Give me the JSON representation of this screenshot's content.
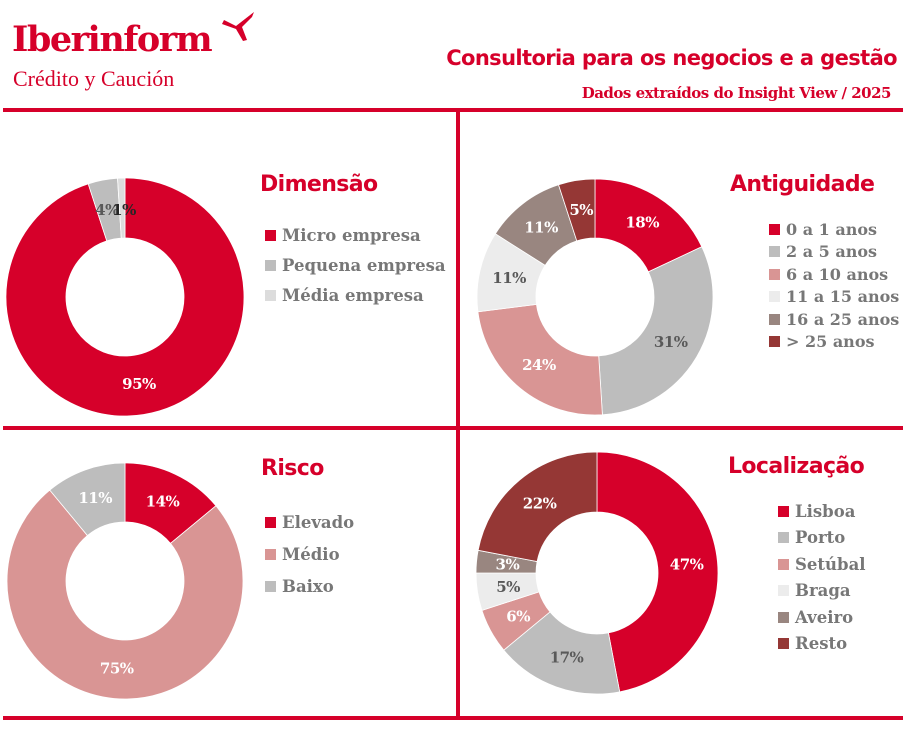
{
  "header": {
    "logo_text": "Iberinform",
    "logo_subtext": "Crédito y Caución",
    "title": "Consultoria para os negocios e a gestão",
    "subtitle": "Dados extraídos do Insight View / 2025"
  },
  "colors": {
    "brand_red": "#d6002a",
    "light_gray": "#bdbdbd",
    "pale_gray": "#d9d9d9",
    "pink": "#d99594",
    "off_white": "#ececec",
    "taupe": "#998680",
    "dark_red": "#953735",
    "legend_text": "#777777"
  },
  "chart_data": [
    {
      "type": "pie",
      "variant": "donut",
      "title": "Dimensão",
      "categories": [
        "Micro empresa",
        "Pequena empresa",
        "Média empresa"
      ],
      "values": [
        95,
        4,
        1
      ],
      "labels": [
        "95%",
        "4%",
        "1%"
      ],
      "colors": [
        "#d6002a",
        "#bdbdbd",
        "#dcdcdc"
      ],
      "label_colors": [
        "#ffffff",
        "#595959",
        "#262626"
      ],
      "legend": "right"
    },
    {
      "type": "pie",
      "variant": "donut",
      "title": "Antiguidade",
      "categories": [
        "0 a 1 anos",
        "2 a 5 anos",
        "6 a 10 anos",
        "11 a 15 anos",
        "16 a 25 anos",
        "> 25 anos"
      ],
      "values": [
        18,
        31,
        24,
        11,
        11,
        5
      ],
      "labels": [
        "18%",
        "31%",
        "24%",
        "11%",
        "11%",
        "5%"
      ],
      "colors": [
        "#d6002a",
        "#bdbdbd",
        "#d99594",
        "#ececec",
        "#998680",
        "#953735"
      ],
      "label_colors": [
        "#ffffff",
        "#595959",
        "#ffffff",
        "#595959",
        "#ffffff",
        "#ffffff"
      ],
      "legend": "right"
    },
    {
      "type": "pie",
      "variant": "donut",
      "title": "Risco",
      "categories": [
        "Elevado",
        "Médio",
        "Baixo"
      ],
      "values": [
        14,
        75,
        11
      ],
      "labels": [
        "14%",
        "75%",
        "11%"
      ],
      "colors": [
        "#d6002a",
        "#d99594",
        "#bdbdbd"
      ],
      "label_colors": [
        "#ffffff",
        "#ffffff",
        "#ffffff"
      ],
      "legend": "right"
    },
    {
      "type": "pie",
      "variant": "donut",
      "title": "Localização",
      "categories": [
        "Lisboa",
        "Porto",
        "Setúbal",
        "Braga",
        "Aveiro",
        "Resto"
      ],
      "values": [
        47,
        17,
        6,
        5,
        3,
        22
      ],
      "labels": [
        "47%",
        "17%",
        "6%",
        "5%",
        "3%",
        "22%"
      ],
      "colors": [
        "#d6002a",
        "#bdbdbd",
        "#d99594",
        "#ececec",
        "#998680",
        "#953735"
      ],
      "label_colors": [
        "#ffffff",
        "#595959",
        "#ffffff",
        "#595959",
        "#ffffff",
        "#ffffff"
      ],
      "legend": "right"
    }
  ]
}
